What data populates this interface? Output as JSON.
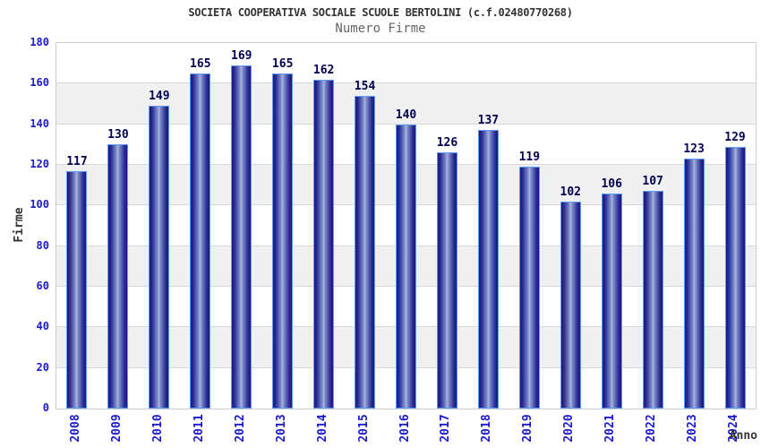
{
  "chart_data": {
    "type": "bar",
    "title": "SOCIETA COOPERATIVA SOCIALE SCUOLE BERTOLINI (c.f.02480770268)",
    "subtitle": "Numero Firme",
    "xlabel": "Anno",
    "ylabel": "Firme",
    "categories": [
      "2008",
      "2009",
      "2010",
      "2011",
      "2012",
      "2013",
      "2014",
      "2015",
      "2016",
      "2017",
      "2018",
      "2019",
      "2020",
      "2021",
      "2022",
      "2023",
      "2024"
    ],
    "series": [
      {
        "name": "Numero Firme",
        "values": [
          117,
          130,
          149,
          165,
          169,
          165,
          162,
          154,
          140,
          126,
          137,
          119,
          102,
          106,
          107,
          123,
          129
        ]
      }
    ],
    "ylim": [
      0,
      180
    ],
    "ytick_step": 20,
    "grid": true,
    "legend_position": "none",
    "bar_value_labels": true,
    "alternating_bands": true,
    "colors": {
      "title": "#333333",
      "subtitle": "#666666",
      "tick_label": "#1a1acc",
      "value_label": "#000050",
      "axis_title": "#333333",
      "bar_edge": "#1a1a78",
      "bar_center": "#aab4e0",
      "bar_border": "#5c9cf5",
      "band_gray": "#f0f0f0",
      "gridline": "#d8d8d8",
      "plot_border": "#cccccc",
      "background": "#ffffff"
    }
  }
}
